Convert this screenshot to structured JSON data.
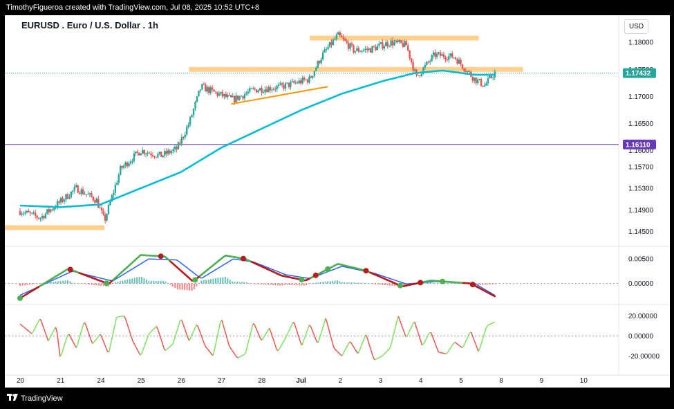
{
  "attribution": "TimothyFigueroa created with TradingView.com, Jul 08, 2025 10:52 UTC+8",
  "footer_brand": "TradingView",
  "symbol_title": "EURUSD . Euro / U.S. Dollar . 1h",
  "currency": "USD",
  "colors": {
    "up": "#26a69a",
    "down": "#ef5350",
    "ma": "#00bcd4",
    "zone": "#ffcc80",
    "trendline": "#ff9800",
    "level": "#673ab7",
    "macd_fast": "#4caf50",
    "macd_slow": "#2962ff",
    "macd_bear": "#b71c1c",
    "osc_up": "#7be35a",
    "osc_down": "#ef5350"
  },
  "chart_data": [
    {
      "type": "candlestick",
      "title": "EURUSD . Euro / U.S. Dollar . 1h",
      "x_tick_labels": [
        "20",
        "21",
        "24",
        "25",
        "26",
        "27",
        "28",
        "Jul",
        "2",
        "3",
        "4",
        "5",
        "8",
        "9",
        "10"
      ],
      "ylim": [
        1.1425,
        1.184
      ],
      "y_ticks": [
        "1.18000",
        "1.17500",
        "1.17000",
        "1.16500",
        "1.16000",
        "1.15700",
        "1.15300",
        "1.14900",
        "1.14500"
      ],
      "last_price_label": "1.17432",
      "horizontal_level_label": "1.16110",
      "price_anchors": [
        [
          0,
          1.1488
        ],
        [
          0.5,
          1.1475
        ],
        [
          1,
          1.1505
        ],
        [
          1.4,
          1.153
        ],
        [
          1.9,
          1.1508
        ],
        [
          2.1,
          1.147
        ],
        [
          2.5,
          1.1566
        ],
        [
          3,
          1.16
        ],
        [
          3.5,
          1.159
        ],
        [
          3.9,
          1.1603
        ],
        [
          4.2,
          1.165
        ],
        [
          4.5,
          1.1718
        ],
        [
          4.9,
          1.1705
        ],
        [
          5.3,
          1.1694
        ],
        [
          5.8,
          1.1712
        ],
        [
          6.5,
          1.1718
        ],
        [
          7.2,
          1.1732
        ],
        [
          7.5,
          1.1775
        ],
        [
          7.9,
          1.1813
        ],
        [
          8.3,
          1.1785
        ],
        [
          8.7,
          1.1787
        ],
        [
          9.2,
          1.18
        ],
        [
          9.6,
          1.1795
        ],
        [
          9.85,
          1.1735
        ],
        [
          10.3,
          1.1777
        ],
        [
          10.8,
          1.1773
        ],
        [
          11.1,
          1.1748
        ],
        [
          11.3,
          1.1732
        ],
        [
          11.55,
          1.172
        ],
        [
          11.8,
          1.1744
        ]
      ],
      "moving_average_anchors": [
        [
          0,
          1.1498
        ],
        [
          1,
          1.1495
        ],
        [
          2,
          1.15
        ],
        [
          3,
          1.153
        ],
        [
          4,
          1.156
        ],
        [
          5,
          1.1605
        ],
        [
          6,
          1.164
        ],
        [
          7,
          1.1675
        ],
        [
          8,
          1.1705
        ],
        [
          9,
          1.1728
        ],
        [
          9.8,
          1.1743
        ],
        [
          10.5,
          1.1748
        ],
        [
          11.3,
          1.174
        ],
        [
          11.8,
          1.174
        ]
      ],
      "horizontal_level": 1.1611,
      "resistance_zones": [
        {
          "x": [
            -0.4,
            2.1
          ],
          "y": 1.1457
        },
        {
          "x": [
            4.2,
            12.5
          ],
          "y": 1.175
        },
        {
          "x": [
            7.2,
            11.4
          ],
          "y": 1.1808
        }
      ],
      "trendline": {
        "from": [
          5.25,
          1.1686
        ],
        "to": [
          7.65,
          1.1718
        ]
      }
    },
    {
      "type": "line",
      "title": "",
      "ylim": [
        -0.004,
        0.007
      ],
      "y_ticks": [
        "0.00500",
        "0.00000"
      ],
      "series": [
        {
          "values": [
            [
              0,
              -0.003
            ],
            [
              1.2,
              0.003
            ],
            [
              2.2,
              -0.0001
            ],
            [
              3.0,
              0.0058
            ],
            [
              3.6,
              0.0055
            ],
            [
              4.3,
              0.0004
            ],
            [
              5.1,
              0.0057
            ],
            [
              5.6,
              0.005
            ],
            [
              6.5,
              0.0016
            ],
            [
              7.1,
              0.0006
            ],
            [
              7.9,
              0.004
            ],
            [
              8.6,
              0.0026
            ],
            [
              9.5,
              -0.0006
            ],
            [
              10.2,
              0.0006
            ],
            [
              11.2,
              0.0
            ],
            [
              11.8,
              -0.0026
            ]
          ]
        },
        {
          "values": [
            [
              0,
              -0.0024
            ],
            [
              1.3,
              0.0025
            ],
            [
              2.3,
              0.0005
            ],
            [
              3.2,
              0.005
            ],
            [
              3.9,
              0.0048
            ],
            [
              4.5,
              0.001
            ],
            [
              5.3,
              0.005
            ],
            [
              5.8,
              0.0044
            ],
            [
              6.6,
              0.0018
            ],
            [
              7.2,
              0.001
            ],
            [
              8.0,
              0.0035
            ],
            [
              8.8,
              0.0021
            ],
            [
              9.6,
              -0.0001
            ],
            [
              10.3,
              0.0004
            ],
            [
              11.3,
              0.0
            ],
            [
              11.8,
              -0.0024
            ]
          ]
        }
      ],
      "cross_markers": [
        {
          "x": 0.0,
          "direction": "up"
        },
        {
          "x": 1.25,
          "direction": "down"
        },
        {
          "x": 2.15,
          "direction": "up"
        },
        {
          "x": 3.5,
          "direction": "down"
        },
        {
          "x": 4.35,
          "direction": "up"
        },
        {
          "x": 5.55,
          "direction": "down"
        },
        {
          "x": 7.0,
          "direction": "up"
        },
        {
          "x": 7.35,
          "direction": "down"
        },
        {
          "x": 7.65,
          "direction": "up"
        },
        {
          "x": 8.6,
          "direction": "down"
        },
        {
          "x": 9.45,
          "direction": "up"
        },
        {
          "x": 9.95,
          "direction": "down"
        },
        {
          "x": 10.5,
          "direction": "up"
        },
        {
          "x": 11.25,
          "direction": "down"
        }
      ]
    },
    {
      "type": "line",
      "title": "",
      "ylim": [
        -30,
        30
      ],
      "y_ticks": [
        "20.00000",
        "0.00000",
        "-20.00000"
      ],
      "series": [
        {
          "values": [
            [
              0,
              12
            ],
            [
              0.3,
              2
            ],
            [
              0.5,
              18
            ],
            [
              0.7,
              -5
            ],
            [
              0.9,
              10
            ],
            [
              1.0,
              -22
            ],
            [
              1.2,
              3
            ],
            [
              1.4,
              -12
            ],
            [
              1.6,
              15
            ],
            [
              1.8,
              -8
            ],
            [
              2.0,
              2
            ],
            [
              2.2,
              -18
            ],
            [
              2.4,
              19
            ],
            [
              2.6,
              20
            ],
            [
              2.8,
              -5
            ],
            [
              3.0,
              -20
            ],
            [
              3.2,
              2
            ],
            [
              3.4,
              10
            ],
            [
              3.6,
              -15
            ],
            [
              3.8,
              -8
            ],
            [
              4.0,
              18
            ],
            [
              4.2,
              -5
            ],
            [
              4.4,
              12
            ],
            [
              4.6,
              -10
            ],
            [
              4.8,
              -20
            ],
            [
              5.0,
              18
            ],
            [
              5.2,
              -10
            ],
            [
              5.4,
              -22
            ],
            [
              5.6,
              -18
            ],
            [
              5.8,
              14
            ],
            [
              6.0,
              -5
            ],
            [
              6.2,
              8
            ],
            [
              6.4,
              -16
            ],
            [
              6.6,
              -2
            ],
            [
              6.8,
              15
            ],
            [
              7.0,
              -10
            ],
            [
              7.2,
              12
            ],
            [
              7.4,
              -8
            ],
            [
              7.6,
              18
            ],
            [
              7.8,
              -12
            ],
            [
              8.0,
              -20
            ],
            [
              8.2,
              -5
            ],
            [
              8.4,
              -18
            ],
            [
              8.6,
              2
            ],
            [
              8.8,
              -24
            ],
            [
              9.0,
              -20
            ],
            [
              9.2,
              -12
            ],
            [
              9.4,
              20
            ],
            [
              9.6,
              -2
            ],
            [
              9.8,
              15
            ],
            [
              10.0,
              -10
            ],
            [
              10.2,
              5
            ],
            [
              10.4,
              -16
            ],
            [
              10.6,
              -18
            ],
            [
              10.8,
              -6
            ],
            [
              11.0,
              -12
            ],
            [
              11.2,
              5
            ],
            [
              11.4,
              -16
            ],
            [
              11.6,
              10
            ],
            [
              11.8,
              14
            ]
          ]
        }
      ]
    }
  ]
}
